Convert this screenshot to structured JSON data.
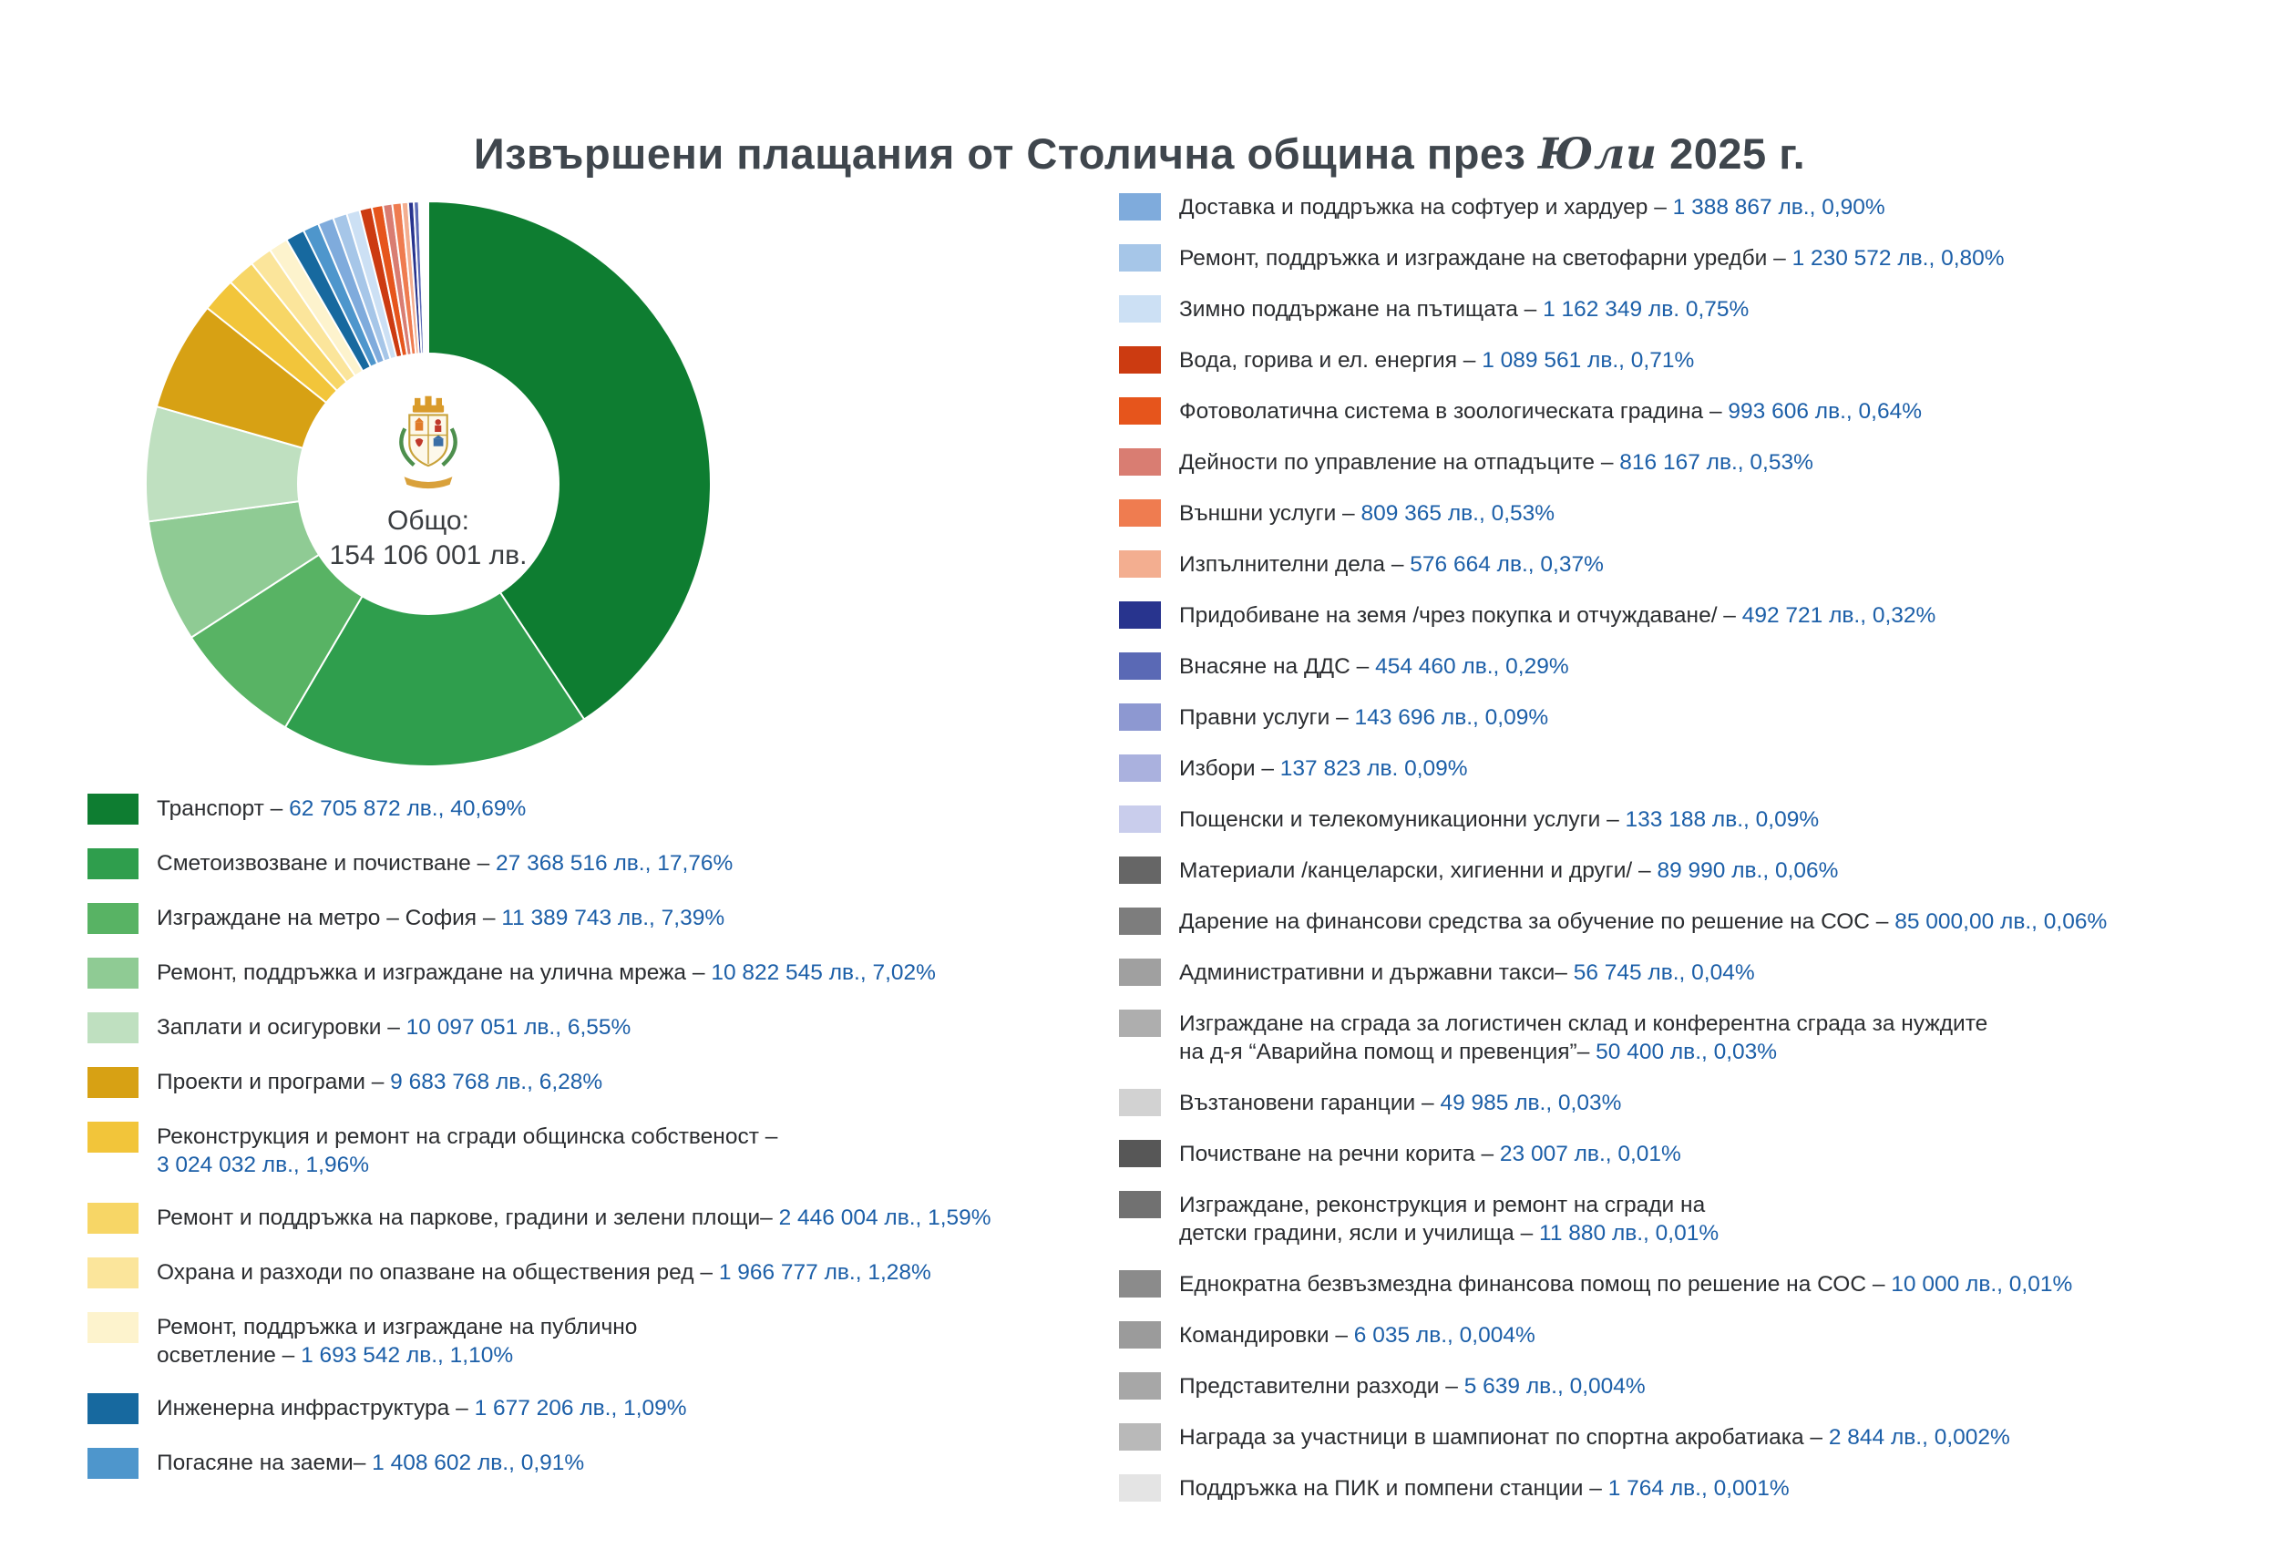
{
  "title": {
    "prefix": "Извършени плащания от Столична община през",
    "month": "Юли",
    "suffix": "2025 г."
  },
  "chart_data": {
    "type": "pie",
    "variant": "donut",
    "title": "Извършени плащания от Столична община през Юли 2025 г.",
    "unit": "лв.",
    "total_label": "Общо:",
    "total_value_text": "154 106 001 лв.",
    "total_value": 154106001,
    "legend_position": "left-and-right",
    "start_angle_deg": -90,
    "direction": "clockwise",
    "slices": [
      {
        "name": "Транспорт",
        "sep": " – ",
        "value_text": "62 705 872 лв., 40,69%",
        "value": 62705872,
        "pct": 40.69,
        "color": "#0e7d31",
        "column": "left"
      },
      {
        "name": "Сметоизвозване и почистване",
        "sep": " – ",
        "value_text": "27 368 516 лв., 17,76%",
        "value": 27368516,
        "pct": 17.76,
        "color": "#2f9e4d",
        "column": "left"
      },
      {
        "name": "Изграждане на метро – София",
        "sep": " – ",
        "value_text": "11 389 743 лв., 7,39%",
        "value": 11389743,
        "pct": 7.39,
        "color": "#58b364",
        "column": "left"
      },
      {
        "name": "Ремонт, поддръжка и изграждане на улична мрежа",
        "sep": " – ",
        "value_text": "10 822 545 лв., 7,02%",
        "value": 10822545,
        "pct": 7.02,
        "color": "#8fcb94",
        "column": "left"
      },
      {
        "name": "Заплати и осигуровки",
        "sep": " – ",
        "value_text": "10 097 051 лв., 6,55%",
        "value": 10097051,
        "pct": 6.55,
        "color": "#bfe0c0",
        "column": "left"
      },
      {
        "name": "Проекти и програми",
        "sep": " – ",
        "value_text": "9 683 768 лв., 6,28%",
        "value": 9683768,
        "pct": 6.28,
        "color": "#d7a114",
        "column": "left"
      },
      {
        "name": "Реконструкция и ремонт на сгради общинска собственост",
        "sep": " –\n",
        "value_text": "3 024 032 лв., 1,96%",
        "value": 3024032,
        "pct": 1.96,
        "color": "#f2c53a",
        "column": "left"
      },
      {
        "name": "Ремонт и поддръжка на паркове, градини и зелени площи",
        "sep": "– ",
        "value_text": "2 446 004 лв., 1,59%",
        "value": 2446004,
        "pct": 1.59,
        "color": "#f7d666",
        "column": "left"
      },
      {
        "name": "Охрана и разходи по опазване на обществения ред",
        "sep": " – ",
        "value_text": "1 966 777 лв., 1,28%",
        "value": 1966777,
        "pct": 1.28,
        "color": "#fbe59b",
        "column": "left"
      },
      {
        "name": "Ремонт, поддръжка и изграждане на публично\nосветление",
        "sep": " – ",
        "value_text": "1 693 542 лв., 1,10%",
        "value": 1693542,
        "pct": 1.1,
        "color": "#fdf3cd",
        "column": "left"
      },
      {
        "name": "Инженерна инфраструктура",
        "sep": " – ",
        "value_text": "1 677 206 лв., 1,09%",
        "value": 1677206,
        "pct": 1.09,
        "color": "#17699f",
        "column": "left"
      },
      {
        "name": "Погасяне на заеми",
        "sep": "– ",
        "value_text": "1 408 602 лв., 0,91%",
        "value": 1408602,
        "pct": 0.91,
        "color": "#4e96cc",
        "column": "left"
      },
      {
        "name": "Доставка и поддръжка на софтуер и хардуер",
        "sep": " – ",
        "value_text": "1 388 867 лв., 0,90%",
        "value": 1388867,
        "pct": 0.9,
        "color": "#7fabdc",
        "column": "right"
      },
      {
        "name": "Ремонт, поддръжка и изграждане на светофарни уредби",
        "sep": " – ",
        "value_text": "1 230 572 лв., 0,80%",
        "value": 1230572,
        "pct": 0.8,
        "color": "#a6c6e8",
        "column": "right"
      },
      {
        "name": "Зимно поддържане на пътищата",
        "sep": " – ",
        "value_text": "1 162 349 лв. 0,75%",
        "value": 1162349,
        "pct": 0.75,
        "color": "#cce0f4",
        "column": "right"
      },
      {
        "name": "Вода, горива и ел. енергия",
        "sep": " – ",
        "value_text": "1 089 561 лв., 0,71%",
        "value": 1089561,
        "pct": 0.71,
        "color": "#cc3b11",
        "column": "right"
      },
      {
        "name": "Фотоволатична система в зоологическата градина",
        "sep": " – ",
        "value_text": "993 606 лв., 0,64%",
        "value": 993606,
        "pct": 0.64,
        "color": "#e6551c",
        "column": "right"
      },
      {
        "name": "Дейности по управление на отпадъците",
        "sep": " – ",
        "value_text": "816 167 лв., 0,53%",
        "value": 816167,
        "pct": 0.53,
        "color": "#d97d72",
        "column": "right"
      },
      {
        "name": "Външни услуги",
        "sep": " – ",
        "value_text": "809 365 лв., 0,53%",
        "value": 809365,
        "pct": 0.53,
        "color": "#ef7c50",
        "column": "right"
      },
      {
        "name": "Изпълнителни дела",
        "sep": " – ",
        "value_text": "576 664 лв., 0,37%",
        "value": 576664,
        "pct": 0.37,
        "color": "#f3ae90",
        "column": "right"
      },
      {
        "name": "Придобиване на земя /чрез покупка и отчуждаване/",
        "sep": " – ",
        "value_text": "492 721 лв., 0,32%",
        "value": 492721,
        "pct": 0.32,
        "color": "#28348e",
        "column": "right"
      },
      {
        "name": "Внасяне на ДДС",
        "sep": " – ",
        "value_text": "454 460 лв., 0,29%",
        "value": 454460,
        "pct": 0.29,
        "color": "#5a69b5",
        "column": "right"
      },
      {
        "name": "Правни услуги",
        "sep": " – ",
        "value_text": "143 696 лв., 0,09%",
        "value": 143696,
        "pct": 0.09,
        "color": "#8d98d1",
        "column": "right"
      },
      {
        "name": "Избори",
        "sep": " – ",
        "value_text": "137 823 лв. 0,09%",
        "value": 137823,
        "pct": 0.09,
        "color": "#aab1de",
        "column": "right"
      },
      {
        "name": "Пощенски и телекомуникационни услуги",
        "sep": " – ",
        "value_text": "133 188 лв., 0,09%",
        "value": 133188,
        "pct": 0.09,
        "color": "#c9cdec",
        "column": "right"
      },
      {
        "name": "Материали /канцеларски, хигиенни и други/",
        "sep": " – ",
        "value_text": "89 990 лв., 0,06%",
        "value": 89990,
        "pct": 0.06,
        "color": "#666666",
        "column": "right"
      },
      {
        "name": "Дарение на финансови средства за обучение по решение на СОС",
        "sep": " – ",
        "value_text": "85 000,00 лв., 0,06%",
        "value": 85000,
        "pct": 0.06,
        "color": "#7d7d7d",
        "column": "right"
      },
      {
        "name": "Административни и държавни такси",
        "sep": "– ",
        "value_text": "56 745 лв., 0,04%",
        "value": 56745,
        "pct": 0.04,
        "color": "#a0a0a0",
        "column": "right"
      },
      {
        "name": "Изграждане на сграда за логистичен склад и конферентна сграда за нуждите\nна д-я “Аварийна помощ и превенция”",
        "sep": "– ",
        "value_text": "50 400 лв., 0,03%",
        "value": 50400,
        "pct": 0.03,
        "color": "#aeaeae",
        "column": "right"
      },
      {
        "name": "Възтановени гаранции",
        "sep": " – ",
        "value_text": "49 985 лв., 0,03%",
        "value": 49985,
        "pct": 0.03,
        "color": "#d2d2d2",
        "column": "right"
      },
      {
        "name": "Почистване на речни корита",
        "sep": " – ",
        "value_text": "23 007 лв., 0,01%",
        "value": 23007,
        "pct": 0.01,
        "color": "#575757",
        "column": "right"
      },
      {
        "name": "Изграждане, реконструкция и ремонт на сгради на\nдетски градини, ясли и училища",
        "sep": " – ",
        "value_text": "11 880 лв., 0,01%",
        "value": 11880,
        "pct": 0.01,
        "color": "#717171",
        "column": "right"
      },
      {
        "name": "Еднократна безвъзмездна финансова помощ по решение на СОС",
        "sep": " – ",
        "value_text": "10 000 лв., 0,01%",
        "value": 10000,
        "pct": 0.01,
        "color": "#8b8b8b",
        "column": "right"
      },
      {
        "name": "Командировки",
        "sep": " – ",
        "value_text": "6 035 лв., 0,004%",
        "value": 6035,
        "pct": 0.004,
        "color": "#9b9b9b",
        "column": "right"
      },
      {
        "name": "Представителни разходи",
        "sep": " – ",
        "value_text": "5 639 лв., 0,004%",
        "value": 5639,
        "pct": 0.004,
        "color": "#a7a7a7",
        "column": "right"
      },
      {
        "name": "Награда за участници в шампионат по спортна акробатиака",
        "sep": " – ",
        "value_text": "2 844 лв., 0,002%",
        "value": 2844,
        "pct": 0.002,
        "color": "#b9b9b9",
        "column": "right"
      },
      {
        "name": "Поддръжка на ПИК и помпени станции",
        "sep": " – ",
        "value_text": "1 764 лв., 0,001%",
        "value": 1764,
        "pct": 0.001,
        "color": "#e4e4e4",
        "column": "right"
      }
    ]
  }
}
